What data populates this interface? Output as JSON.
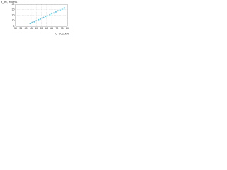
{
  "chart_data": {
    "type": "scatter",
    "ylabel": "t_rec, HOURS",
    "xlabel": "C_CO2, kW",
    "color": "#5bc8e8",
    "xlim": [
      30,
      80
    ],
    "xticks": [
      30,
      35,
      40,
      45,
      50,
      55,
      60,
      65,
      70,
      75,
      80
    ],
    "ylim": [
      0,
      40
    ],
    "yticks": [
      0,
      10,
      20,
      30,
      40
    ],
    "grid": true,
    "x": [
      44,
      46,
      48,
      50,
      52,
      54,
      56,
      57,
      59,
      61,
      63,
      65,
      67,
      69,
      71,
      73,
      75,
      77
    ],
    "values": [
      5,
      7,
      8,
      10,
      12,
      13,
      15,
      16,
      18,
      19,
      21,
      23,
      24,
      26,
      28,
      29,
      31,
      33
    ]
  }
}
